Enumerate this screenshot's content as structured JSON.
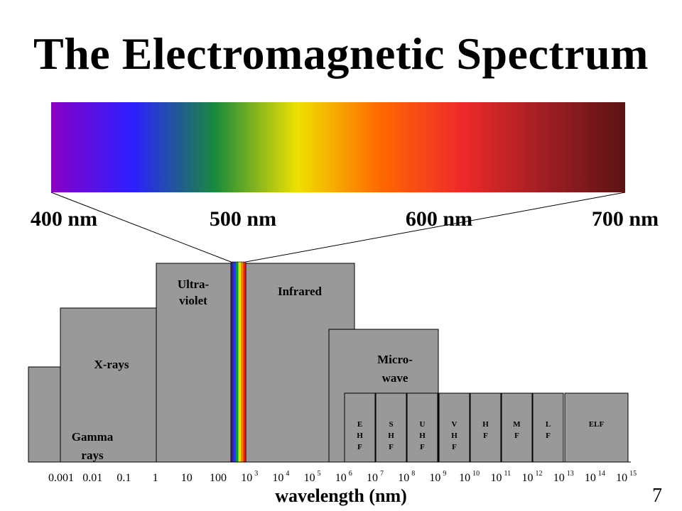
{
  "title": "The Electromagnetic Spectrum",
  "visible_spectrum": {
    "colors": [
      "#8a00c6",
      "#2a20ff",
      "#1a8a3a",
      "#f0e000",
      "#ff6a00",
      "#ee2a2a",
      "#a01e24",
      "#5a1414"
    ],
    "wavelength_labels": [
      "400 nm",
      "500 nm",
      "600 nm",
      "700 nm"
    ],
    "strip_colors": [
      "#3b1a9a",
      "#1a3cff",
      "#0a9a2a",
      "#f0e000",
      "#ff7a00",
      "#e81e1e"
    ]
  },
  "bands": [
    {
      "key": "gamma",
      "lines": [
        "Gamma",
        "rays"
      ]
    },
    {
      "key": "xrays",
      "lines": [
        "X-rays"
      ]
    },
    {
      "key": "ultraviolet",
      "lines": [
        "Ultra-",
        "violet"
      ]
    },
    {
      "key": "infrared",
      "lines": [
        "Infrared"
      ]
    },
    {
      "key": "microwave",
      "lines": [
        "Micro-",
        "wave"
      ]
    }
  ],
  "radio_bands": [
    {
      "key": "ehf",
      "letters": [
        "E",
        "H",
        "F"
      ]
    },
    {
      "key": "shf",
      "letters": [
        "S",
        "H",
        "F"
      ]
    },
    {
      "key": "uhf",
      "letters": [
        "U",
        "H",
        "F"
      ]
    },
    {
      "key": "vhf",
      "letters": [
        "V",
        "H",
        "F"
      ]
    },
    {
      "key": "hf",
      "letters": [
        "H",
        "F"
      ]
    },
    {
      "key": "mf",
      "letters": [
        "M",
        "F"
      ]
    },
    {
      "key": "lf",
      "letters": [
        "L",
        "F"
      ]
    },
    {
      "key": "elf",
      "letters": [
        "ELF"
      ]
    }
  ],
  "axis": {
    "ticks": [
      {
        "base": "0.001",
        "exp": ""
      },
      {
        "base": "0.01",
        "exp": ""
      },
      {
        "base": "0.1",
        "exp": ""
      },
      {
        "base": "1",
        "exp": ""
      },
      {
        "base": "10",
        "exp": ""
      },
      {
        "base": "100",
        "exp": ""
      },
      {
        "base": "10",
        "exp": "3"
      },
      {
        "base": "10",
        "exp": "4"
      },
      {
        "base": "10",
        "exp": "5"
      },
      {
        "base": "10",
        "exp": "6"
      },
      {
        "base": "10",
        "exp": "7"
      },
      {
        "base": "10",
        "exp": "8"
      },
      {
        "base": "10",
        "exp": "9"
      },
      {
        "base": "10",
        "exp": "10"
      },
      {
        "base": "10",
        "exp": "11"
      },
      {
        "base": "10",
        "exp": "12"
      },
      {
        "base": "10",
        "exp": "13"
      },
      {
        "base": "10",
        "exp": "14"
      },
      {
        "base": "10",
        "exp": "15"
      }
    ],
    "title": "wavelength (nm)"
  },
  "slide_number": "7",
  "colors": {
    "band_fill": "#999999",
    "band_stroke": "#000000"
  }
}
